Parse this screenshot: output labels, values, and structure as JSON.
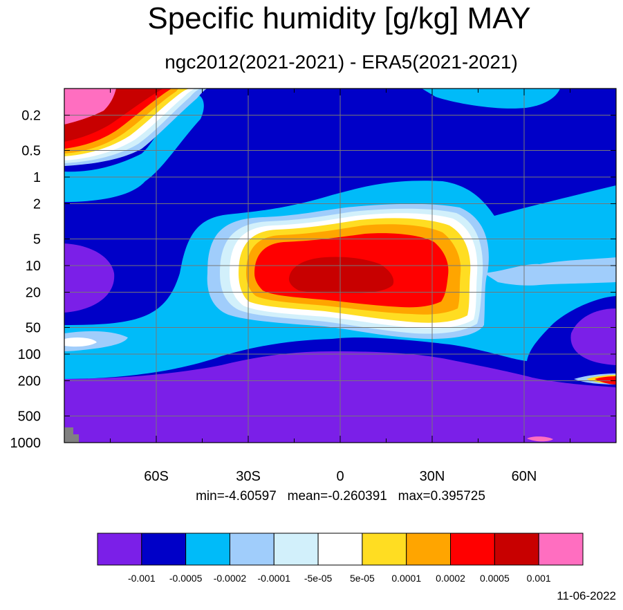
{
  "title": "Specific humidity [g/kg] MAY",
  "subtitle": "ngc2012(2021-2021) - ERA5(2021-2021)",
  "stats": "min=-4.60597   mean=-0.260391   max=0.395725",
  "date": "11-06-2022",
  "chart_data": {
    "type": "heatmap",
    "title": "Specific humidity [g/kg] MAY",
    "subtitle": "ngc2012(2021-2021) - ERA5(2021-2021)",
    "x_tick_labels": [
      "60S",
      "30S",
      "0",
      "30N",
      "60N"
    ],
    "x_ticks": [
      -60,
      -30,
      0,
      30,
      60
    ],
    "xlim": [
      -90,
      90
    ],
    "y_tick_labels": [
      "0.2",
      "0.5",
      "1",
      "2",
      "5",
      "10",
      "20",
      "50",
      "100",
      "200",
      "500",
      "1000"
    ],
    "y_ticks": [
      0.2,
      0.5,
      1,
      2,
      5,
      10,
      20,
      50,
      100,
      200,
      500,
      1000
    ],
    "ylim": [
      0.1,
      1000
    ],
    "y_scale": "log",
    "y_reversed": true,
    "grid": true,
    "colorbar": {
      "placement": "bottom",
      "colors": [
        "#7b1fe8",
        "#0000c8",
        "#00bbf9",
        "#a0cdfb",
        "#d2f0fb",
        "#ffffff",
        "#ffdd22",
        "#ffa500",
        "#ff0000",
        "#c80000",
        "#ff6ec0"
      ],
      "labels": [
        "-0.001",
        "-0.0005",
        "-0.0002",
        "-0.0001",
        "-5e-05",
        "5e-05",
        "0.0001",
        "0.0002",
        "0.0005",
        "0.001"
      ]
    },
    "statistics": {
      "min": -4.60597,
      "mean": -0.260391,
      "max": 0.395725
    }
  }
}
